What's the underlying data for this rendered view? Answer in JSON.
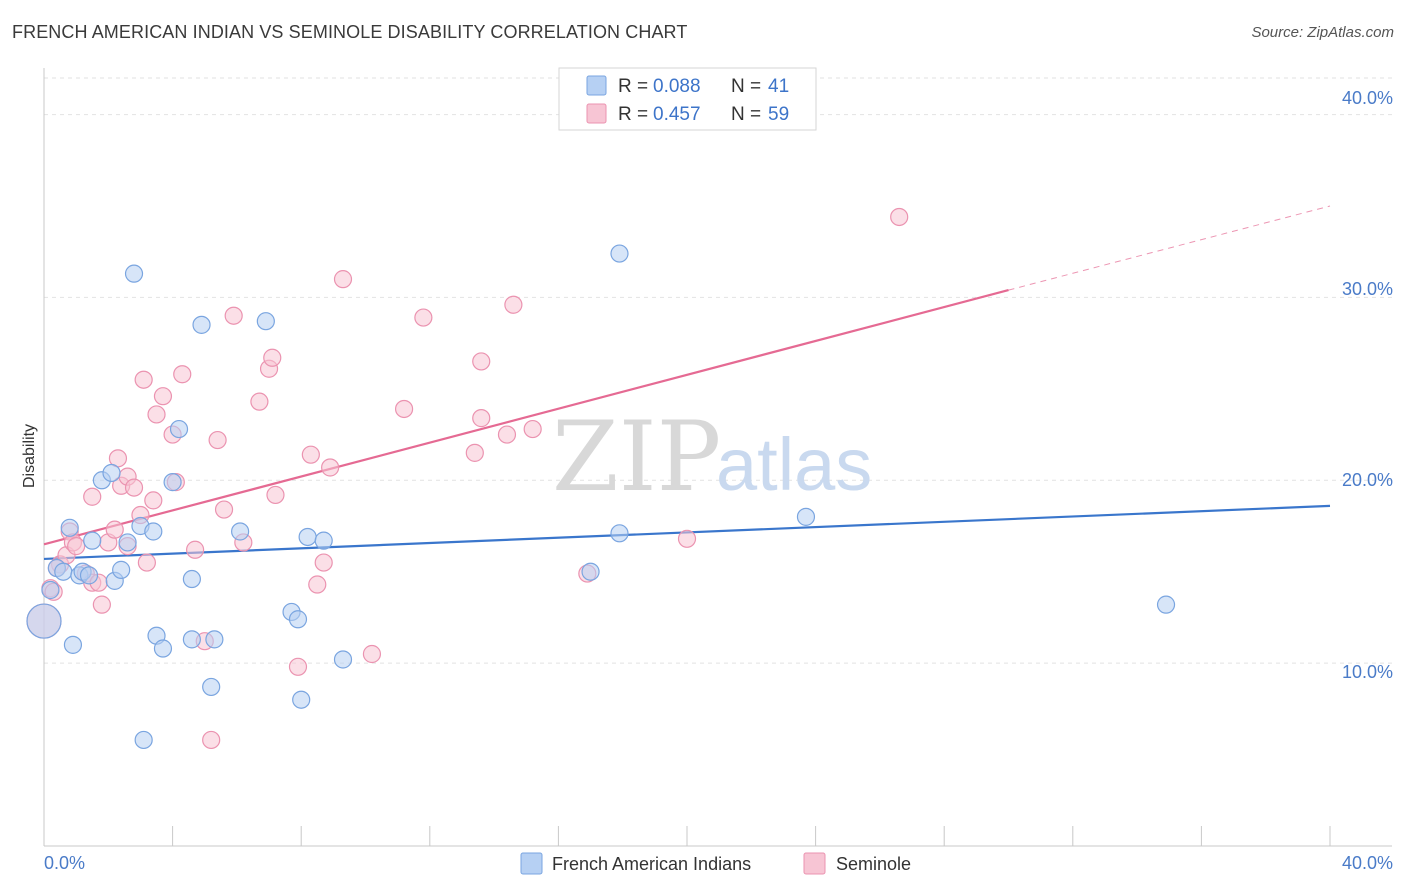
{
  "header": {
    "title": "FRENCH AMERICAN INDIAN VS SEMINOLE DISABILITY CORRELATION CHART",
    "source": "Source: ZipAtlas.com"
  },
  "watermark": {
    "zip": "ZIP",
    "atlas": "atlas"
  },
  "legend": {
    "r_label": "R = ",
    "n_label": "N = ",
    "rows": [
      {
        "series": "French American Indians",
        "r": "0.088",
        "n": "41"
      },
      {
        "series": "Seminole",
        "r": "0.457",
        "n": "59"
      }
    ]
  },
  "colors": {
    "blue_fill": "#b6d0f3",
    "blue_stroke": "#7aa5e0",
    "blue_line": "#3a76cc",
    "pink_fill": "#f7c5d4",
    "pink_stroke": "#eb93b0",
    "pink_line": "#e56a93",
    "axis_text": "#4a7bc8"
  },
  "chart_data": {
    "type": "scatter",
    "title": "FRENCH AMERICAN INDIAN VS SEMINOLE DISABILITY CORRELATION CHART",
    "xlabel": "",
    "ylabel": "Disability",
    "xlim": [
      0,
      40
    ],
    "ylim": [
      0,
      42
    ],
    "x_tick_labels": [
      "0.0%",
      "40.0%"
    ],
    "y_tick_labels": [
      "10.0%",
      "20.0%",
      "30.0%",
      "40.0%"
    ],
    "y_ticks": [
      10,
      20,
      30,
      40
    ],
    "grid": true,
    "series": [
      {
        "name": "French American Indians",
        "color": "blue",
        "points": [
          [
            0.0,
            12.3
          ],
          [
            0.4,
            15.2
          ],
          [
            0.6,
            15.0
          ],
          [
            0.8,
            17.4
          ],
          [
            0.9,
            11.0
          ],
          [
            1.1,
            14.8
          ],
          [
            1.2,
            15.0
          ],
          [
            1.4,
            14.8
          ],
          [
            1.5,
            16.7
          ],
          [
            1.8,
            20.0
          ],
          [
            2.1,
            20.4
          ],
          [
            2.2,
            14.5
          ],
          [
            2.4,
            15.1
          ],
          [
            2.6,
            16.6
          ],
          [
            2.8,
            31.3
          ],
          [
            3.0,
            17.5
          ],
          [
            3.1,
            5.8
          ],
          [
            3.4,
            17.2
          ],
          [
            3.5,
            11.5
          ],
          [
            3.7,
            10.8
          ],
          [
            4.0,
            19.9
          ],
          [
            4.2,
            22.8
          ],
          [
            4.6,
            14.6
          ],
          [
            4.6,
            11.3
          ],
          [
            4.9,
            28.5
          ],
          [
            5.2,
            8.7
          ],
          [
            5.3,
            11.3
          ],
          [
            6.1,
            17.2
          ],
          [
            6.9,
            28.7
          ],
          [
            7.7,
            12.8
          ],
          [
            7.9,
            12.4
          ],
          [
            8.0,
            8.0
          ],
          [
            8.2,
            16.9
          ],
          [
            8.7,
            16.7
          ],
          [
            9.3,
            10.2
          ],
          [
            17.0,
            15.0
          ],
          [
            17.9,
            32.4
          ],
          [
            17.9,
            17.1
          ],
          [
            23.7,
            18.0
          ],
          [
            34.9,
            13.2
          ],
          [
            0.2,
            14.0
          ]
        ]
      },
      {
        "name": "Seminole",
        "color": "pink",
        "points": [
          [
            0.0,
            12.3
          ],
          [
            0.2,
            14.1
          ],
          [
            0.3,
            13.9
          ],
          [
            0.5,
            15.4
          ],
          [
            0.7,
            15.9
          ],
          [
            0.8,
            17.2
          ],
          [
            0.9,
            16.6
          ],
          [
            1.0,
            16.4
          ],
          [
            1.3,
            14.9
          ],
          [
            1.5,
            14.4
          ],
          [
            1.5,
            19.1
          ],
          [
            1.7,
            14.4
          ],
          [
            1.8,
            13.2
          ],
          [
            2.0,
            16.6
          ],
          [
            2.2,
            17.3
          ],
          [
            2.3,
            21.2
          ],
          [
            2.4,
            19.7
          ],
          [
            2.6,
            16.4
          ],
          [
            2.6,
            20.2
          ],
          [
            2.8,
            19.6
          ],
          [
            3.0,
            18.1
          ],
          [
            3.1,
            25.5
          ],
          [
            3.2,
            15.5
          ],
          [
            3.4,
            18.9
          ],
          [
            3.5,
            23.6
          ],
          [
            3.7,
            24.6
          ],
          [
            4.0,
            22.5
          ],
          [
            4.1,
            19.9
          ],
          [
            4.3,
            25.8
          ],
          [
            4.7,
            16.2
          ],
          [
            5.0,
            11.2
          ],
          [
            5.2,
            5.8
          ],
          [
            5.4,
            22.2
          ],
          [
            5.6,
            18.4
          ],
          [
            5.9,
            29.0
          ],
          [
            6.2,
            16.6
          ],
          [
            6.7,
            24.3
          ],
          [
            7.0,
            26.1
          ],
          [
            7.1,
            26.7
          ],
          [
            7.2,
            19.2
          ],
          [
            7.9,
            9.8
          ],
          [
            8.3,
            21.4
          ],
          [
            8.5,
            14.3
          ],
          [
            8.7,
            15.5
          ],
          [
            8.9,
            20.7
          ],
          [
            9.3,
            31.0
          ],
          [
            10.2,
            10.5
          ],
          [
            11.2,
            23.9
          ],
          [
            11.8,
            28.9
          ],
          [
            13.4,
            21.5
          ],
          [
            13.6,
            26.5
          ],
          [
            13.6,
            23.4
          ],
          [
            14.4,
            22.5
          ],
          [
            14.6,
            29.6
          ],
          [
            15.2,
            22.8
          ],
          [
            16.9,
            14.9
          ],
          [
            20.0,
            16.8
          ],
          [
            26.6,
            34.4
          ],
          [
            0.4,
            15.2
          ]
        ]
      }
    ],
    "trend_lines": [
      {
        "series": "French American Indians",
        "x": [
          0,
          40
        ],
        "y": [
          15.7,
          18.6
        ],
        "dashed_from": null
      },
      {
        "series": "Seminole",
        "x": [
          0,
          30,
          40
        ],
        "y": [
          16.5,
          30.4,
          35.0
        ],
        "dashed_from": 30
      }
    ]
  }
}
